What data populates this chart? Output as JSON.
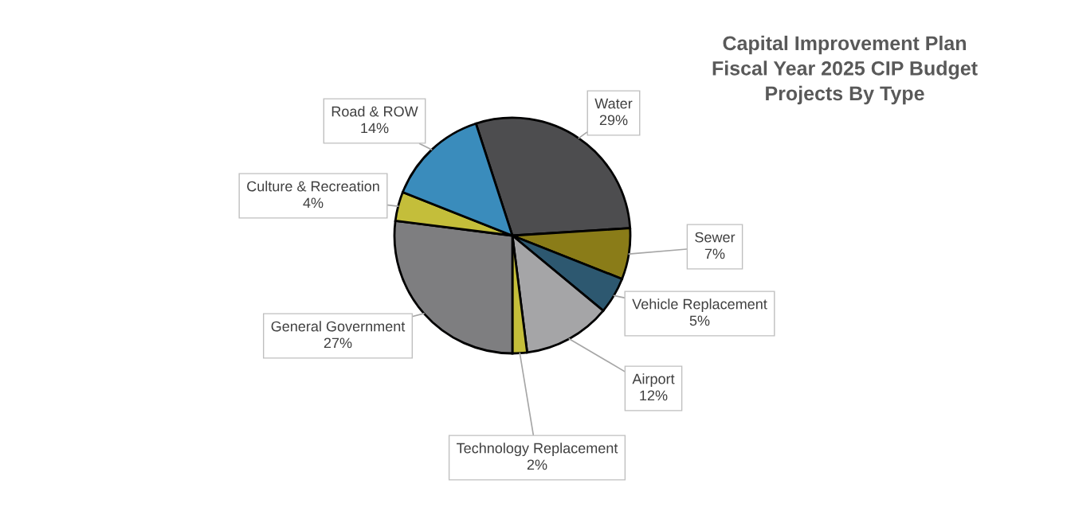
{
  "chart_data": {
    "type": "pie",
    "title": "Capital Improvement Plan\nFiscal Year 2025 CIP Budget\nProjects By Type",
    "categories": [
      "Water",
      "Sewer",
      "Vehicle Replacement",
      "Airport",
      "Technology Replacement",
      "General Government",
      "Culture & Recreation",
      "Road & ROW"
    ],
    "values": [
      29,
      7,
      5,
      12,
      2,
      27,
      4,
      14
    ],
    "value_labels": [
      "29%",
      "7%",
      "5%",
      "12%",
      "2%",
      "27%",
      "4%",
      "14%"
    ],
    "colors": [
      "#4d4d4f",
      "#8a7c18",
      "#2d5870",
      "#a5a5a7",
      "#c4be3a",
      "#7e7e80",
      "#c4be3a",
      "#3a8cbc"
    ],
    "legend": false
  }
}
